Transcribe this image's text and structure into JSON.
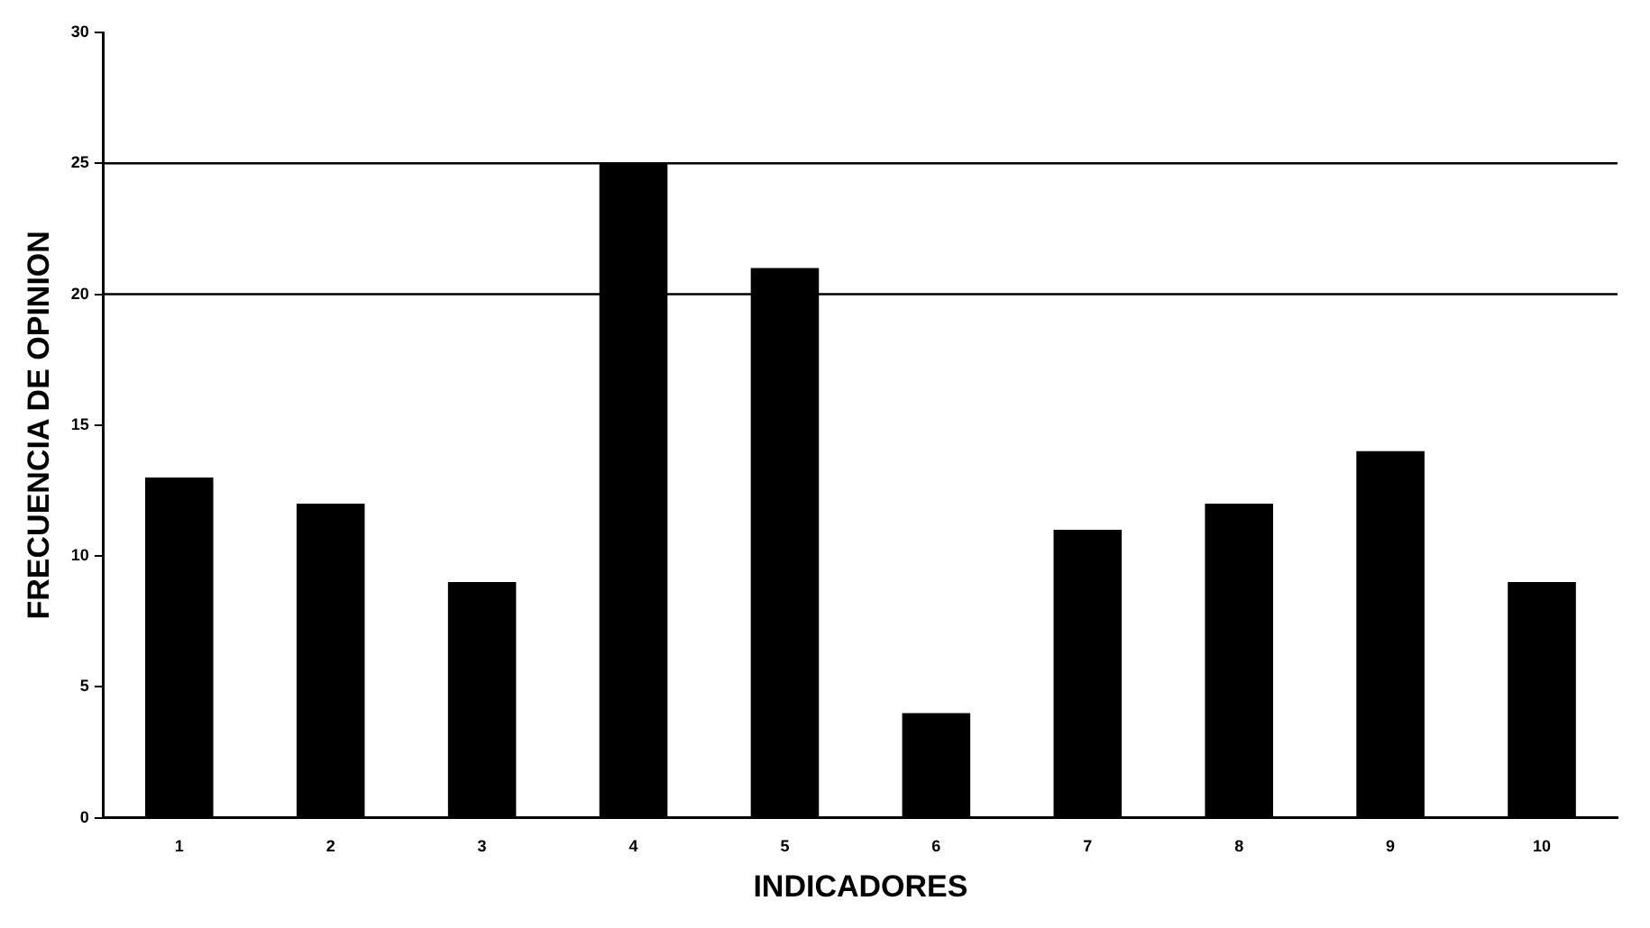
{
  "chart_data": {
    "type": "bar",
    "xlabel": "INDICADORES",
    "ylabel": "FRECUENCIA DE OPINION",
    "categories": [
      "1",
      "2",
      "3",
      "4",
      "5",
      "6",
      "7",
      "8",
      "9",
      "10"
    ],
    "values": [
      13,
      12,
      9,
      25,
      21,
      4,
      11,
      12,
      14,
      9
    ],
    "color": "#000000",
    "ylim": [
      0,
      30
    ],
    "yticks": [
      0,
      5,
      10,
      15,
      20,
      25,
      30
    ],
    "grid": false,
    "legend": false,
    "ref_lines": [
      {
        "axis": "y",
        "value": 20,
        "color": "#000000"
      },
      {
        "axis": "y",
        "value": 25,
        "color": "#000000"
      }
    ]
  }
}
